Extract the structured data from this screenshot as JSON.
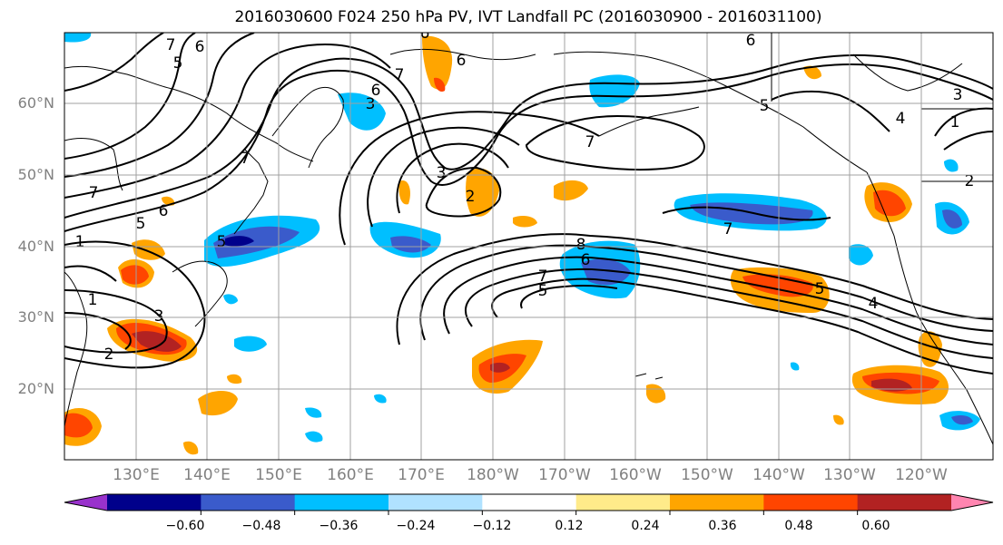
{
  "title": "2016030600 F024 250 hPa PV, IVT Landfall PC (2016030900 - 2016031100)",
  "lat_labels": [
    "60°N",
    "50°N",
    "40°N",
    "30°N",
    "20°N"
  ],
  "lon_labels": [
    "130°E",
    "140°E",
    "150°E",
    "160°E",
    "170°E",
    "180°W",
    "170°W",
    "160°W",
    "150°W",
    "140°W",
    "130°W",
    "120°W"
  ],
  "colorbar": {
    "ticks": [
      "−0.60",
      "−0.48",
      "−0.36",
      "−0.24",
      "−0.12",
      "0.12",
      "0.24",
      "0.36",
      "0.48",
      "0.60"
    ],
    "colors": [
      "#9932CC",
      "#00008B",
      "#3A5BCB",
      "#00BFFF",
      "#B0E2FF",
      "#FFFFFF",
      "#FFEB8A",
      "#FFA500",
      "#FF4500",
      "#B22222",
      "#FF85B0"
    ]
  },
  "contour_labels": [
    "7",
    "6",
    "5",
    "6",
    "7",
    "6",
    "5",
    "6",
    "2",
    "6",
    "6",
    "3",
    "7",
    "7",
    "5",
    "7",
    "8",
    "6",
    "7",
    "5",
    "7",
    "5",
    "4",
    "5",
    "3",
    "1",
    "3",
    "1",
    "1",
    "2",
    "2",
    "3",
    "4"
  ]
}
